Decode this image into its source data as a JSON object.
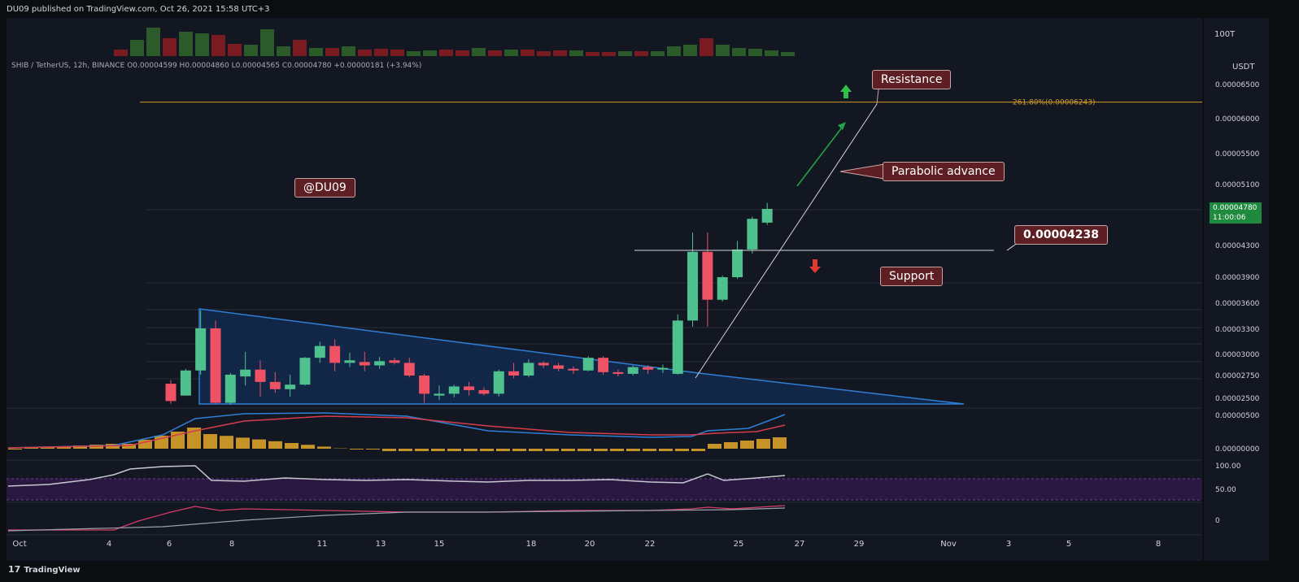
{
  "header": {
    "published": "DU09 published on TradingView.com, Oct 26, 2021 15:58 UTC+3",
    "symbol_line": "SHIB / TetherUS, 12h, BINANCE  O0.00004599  H0.00004860  L0.00004565  C0.00004780  +0.00000181 (+3.94%)"
  },
  "footer": {
    "logo": "17",
    "brand": "TradingView"
  },
  "annotations": {
    "watermark": "@DU09",
    "resistance": "Resistance",
    "parabolic": "Parabolic advance",
    "support": "Support",
    "support_price": "0.00004238"
  },
  "price_axis": {
    "currency": "USDT",
    "volume_label": "100T",
    "current_price": "0.00004780",
    "countdown": "11:00:06"
  },
  "colors": {
    "bg": "#0b0d10",
    "up": "#4fc18e",
    "down": "#ef5265",
    "fib": "#d19a2a",
    "triangle": "#2f7fd6",
    "triangle_fill": "#13294f",
    "macd_hist": "#c69329",
    "rsi_band": "#2a1840",
    "price_tag": "#1f8a3e"
  },
  "chart_data": {
    "type": "candlestick",
    "interval": "12h",
    "x_ticks": [
      "Oct",
      "4",
      "6",
      "8",
      "11",
      "13",
      "15",
      "18",
      "20",
      "22",
      "25",
      "27",
      "29",
      "Nov",
      "3",
      "5",
      "8"
    ],
    "y_ticks": [
      "0.00006500",
      "0.00006000",
      "0.00005500",
      "0.00005100",
      "0.00004300",
      "0.00003900",
      "0.00003600",
      "0.00003300",
      "0.00003000",
      "0.00002750",
      "0.00002500"
    ],
    "fib_levels": [
      {
        "label": "261.80%(0.00006243)",
        "value": 6.243e-05
      }
    ],
    "support": 4.238e-05,
    "candles": [
      {
        "o": 2.66e-05,
        "h": 2.7e-05,
        "l": 2.44e-05,
        "c": 2.47e-05
      },
      {
        "o": 2.53e-05,
        "h": 2.83e-05,
        "l": 2.53e-05,
        "c": 2.81e-05
      },
      {
        "o": 2.81e-05,
        "h": 3.52e-05,
        "l": 2.76e-05,
        "c": 3.31e-05
      },
      {
        "o": 3.31e-05,
        "h": 3.4e-05,
        "l": 2.44e-05,
        "c": 2.45e-05
      },
      {
        "o": 2.45e-05,
        "h": 2.78e-05,
        "l": 2.43e-05,
        "c": 2.76e-05
      },
      {
        "o": 2.74e-05,
        "h": 3.03e-05,
        "l": 2.64e-05,
        "c": 2.82e-05
      },
      {
        "o": 2.82e-05,
        "h": 2.93e-05,
        "l": 2.52e-05,
        "c": 2.68e-05
      },
      {
        "o": 2.68e-05,
        "h": 2.79e-05,
        "l": 2.56e-05,
        "c": 2.6e-05
      },
      {
        "o": 2.6e-05,
        "h": 2.76e-05,
        "l": 2.52e-05,
        "c": 2.65e-05
      },
      {
        "o": 2.65e-05,
        "h": 2.97e-05,
        "l": 2.64e-05,
        "c": 2.96e-05
      },
      {
        "o": 2.96e-05,
        "h": 3.15e-05,
        "l": 2.9e-05,
        "c": 3.1e-05
      },
      {
        "o": 3.1e-05,
        "h": 3.18e-05,
        "l": 2.8e-05,
        "c": 2.9e-05
      },
      {
        "o": 2.9e-05,
        "h": 3.02e-05,
        "l": 2.85e-05,
        "c": 2.93e-05
      },
      {
        "o": 2.91e-05,
        "h": 3.03e-05,
        "l": 2.8e-05,
        "c": 2.87e-05
      },
      {
        "o": 2.87e-05,
        "h": 2.97e-05,
        "l": 2.83e-05,
        "c": 2.92e-05
      },
      {
        "o": 2.93e-05,
        "h": 2.96e-05,
        "l": 2.88e-05,
        "c": 2.9e-05
      },
      {
        "o": 2.9e-05,
        "h": 2.96e-05,
        "l": 2.73e-05,
        "c": 2.75e-05
      },
      {
        "o": 2.75e-05,
        "h": 2.77e-05,
        "l": 2.45e-05,
        "c": 2.55e-05
      },
      {
        "o": 2.53e-05,
        "h": 2.64e-05,
        "l": 2.48e-05,
        "c": 2.55e-05
      },
      {
        "o": 2.55e-05,
        "h": 2.65e-05,
        "l": 2.51e-05,
        "c": 2.63e-05
      },
      {
        "o": 2.63e-05,
        "h": 2.68e-05,
        "l": 2.53e-05,
        "c": 2.59e-05
      },
      {
        "o": 2.59e-05,
        "h": 2.62e-05,
        "l": 2.53e-05,
        "c": 2.55e-05
      },
      {
        "o": 2.55e-05,
        "h": 2.82e-05,
        "l": 2.52e-05,
        "c": 2.8e-05
      },
      {
        "o": 2.8e-05,
        "h": 2.9e-05,
        "l": 2.72e-05,
        "c": 2.75e-05
      },
      {
        "o": 2.75e-05,
        "h": 2.94e-05,
        "l": 2.73e-05,
        "c": 2.9e-05
      },
      {
        "o": 2.9e-05,
        "h": 2.92e-05,
        "l": 2.84e-05,
        "c": 2.87e-05
      },
      {
        "o": 2.87e-05,
        "h": 2.9e-05,
        "l": 2.8e-05,
        "c": 2.83e-05
      },
      {
        "o": 2.83e-05,
        "h": 2.86e-05,
        "l": 2.77e-05,
        "c": 2.81e-05
      },
      {
        "o": 2.81e-05,
        "h": 2.98e-05,
        "l": 2.8e-05,
        "c": 2.96e-05
      },
      {
        "o": 2.96e-05,
        "h": 2.98e-05,
        "l": 2.76e-05,
        "c": 2.79e-05
      },
      {
        "o": 2.79e-05,
        "h": 2.82e-05,
        "l": 2.74e-05,
        "c": 2.77e-05
      },
      {
        "o": 2.77e-05,
        "h": 2.87e-05,
        "l": 2.75e-05,
        "c": 2.85e-05
      },
      {
        "o": 2.85e-05,
        "h": 2.87e-05,
        "l": 2.77e-05,
        "c": 2.82e-05
      },
      {
        "o": 2.82e-05,
        "h": 2.88e-05,
        "l": 2.78e-05,
        "c": 2.84e-05
      },
      {
        "o": 2.77e-05,
        "h": 3.47e-05,
        "l": 2.76e-05,
        "c": 3.4e-05
      },
      {
        "o": 3.4e-05,
        "h": 4.47e-05,
        "l": 3.33e-05,
        "c": 4.22e-05
      },
      {
        "o": 4.22e-05,
        "h": 4.47e-05,
        "l": 3.33e-05,
        "c": 3.64e-05
      },
      {
        "o": 3.64e-05,
        "h": 3.92e-05,
        "l": 3.62e-05,
        "c": 3.9e-05
      },
      {
        "o": 3.9e-05,
        "h": 4.36e-05,
        "l": 3.88e-05,
        "c": 4.25e-05
      },
      {
        "o": 4.25e-05,
        "h": 4.68e-05,
        "l": 4.2e-05,
        "c": 4.65e-05
      },
      {
        "o": 4.6e-05,
        "h": 4.86e-05,
        "l": 4.57e-05,
        "c": 4.78e-05
      }
    ],
    "volume_axis": [
      "100T"
    ],
    "macd_axis": [
      "0.00000500",
      "0.00000000"
    ],
    "rsi_axis": [
      "100.00",
      "50.00"
    ],
    "lower_axis": [
      "0"
    ]
  }
}
